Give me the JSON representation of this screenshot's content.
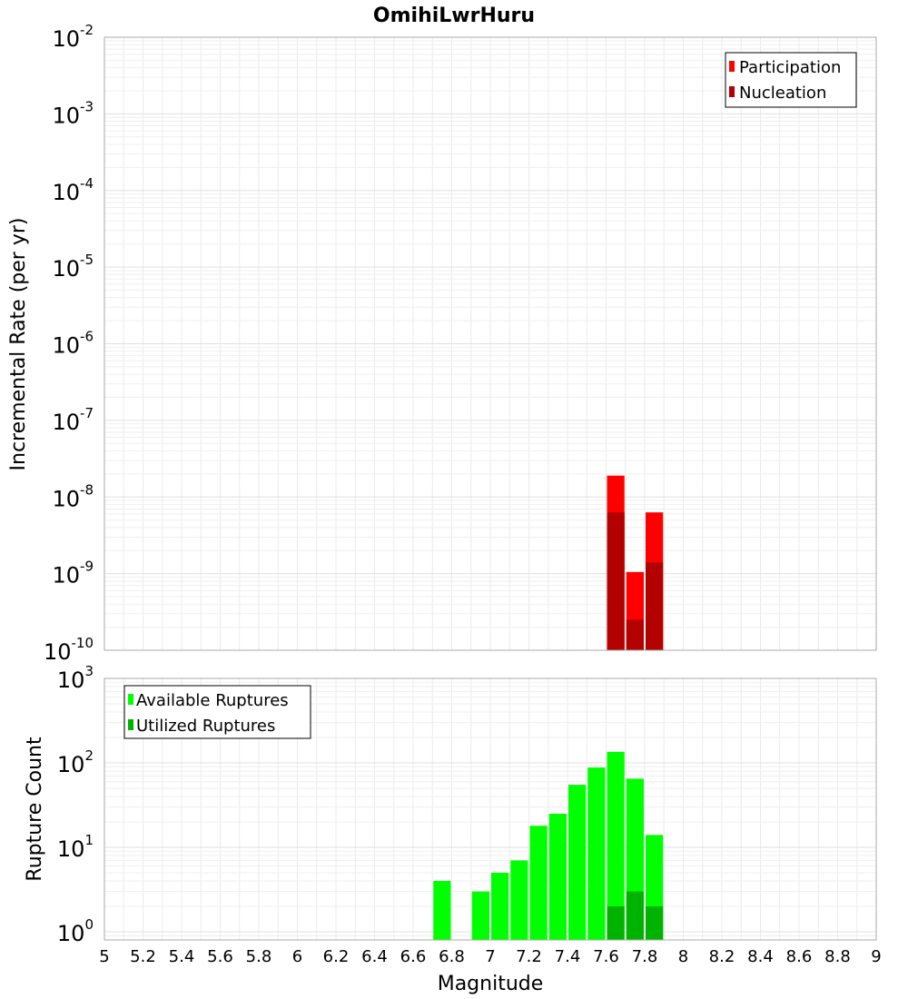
{
  "chart_data": [
    {
      "type": "bar",
      "title": "OmihiLwrHuru",
      "ylabel": "Incremental Rate (per yr)",
      "yscale": "log",
      "ylim": [
        1e-10,
        0.01
      ],
      "y_ticks": [
        {
          "exp": -10,
          "base": "10",
          "exp_label": "-10"
        },
        {
          "exp": -9,
          "base": "10",
          "exp_label": "-9"
        },
        {
          "exp": -8,
          "base": "10",
          "exp_label": "-8"
        },
        {
          "exp": -7,
          "base": "10",
          "exp_label": "-7"
        },
        {
          "exp": -6,
          "base": "10",
          "exp_label": "-6"
        },
        {
          "exp": -5,
          "base": "10",
          "exp_label": "-5"
        },
        {
          "exp": -4,
          "base": "10",
          "exp_label": "-4"
        },
        {
          "exp": -3,
          "base": "10",
          "exp_label": "-3"
        },
        {
          "exp": -2,
          "base": "10",
          "exp_label": "-2"
        }
      ],
      "bin_width": 0.1,
      "series": [
        {
          "name": "Participation",
          "color": "#ff0000",
          "points": [
            {
              "x": 7.65,
              "y": 1.9e-08
            },
            {
              "x": 7.75,
              "y": 1.05e-09
            },
            {
              "x": 7.85,
              "y": 6.3e-09
            }
          ]
        },
        {
          "name": "Nucleation",
          "color": "#b30000",
          "points": [
            {
              "x": 7.65,
              "y": 6.3e-09
            },
            {
              "x": 7.75,
              "y": 2.5e-10
            },
            {
              "x": 7.85,
              "y": 1.4e-09
            }
          ]
        }
      ],
      "legend_position": "top-right",
      "grid": true
    },
    {
      "type": "bar",
      "xlabel": "Magnitude",
      "ylabel": "Rupture Count",
      "yscale": "log",
      "ylim": [
        0.8,
        1000
      ],
      "xlim": [
        5,
        9
      ],
      "x_ticks": [
        "5",
        "5.2",
        "5.4",
        "5.6",
        "5.8",
        "6",
        "6.2",
        "6.4",
        "6.6",
        "6.8",
        "7",
        "7.2",
        "7.4",
        "7.6",
        "7.8",
        "8",
        "8.2",
        "8.4",
        "8.6",
        "8.8",
        "9"
      ],
      "y_ticks": [
        {
          "exp": 0,
          "base": "10",
          "exp_label": "0"
        },
        {
          "exp": 1,
          "base": "10",
          "exp_label": "1"
        },
        {
          "exp": 2,
          "base": "10",
          "exp_label": "2"
        },
        {
          "exp": 3,
          "base": "10",
          "exp_label": "3"
        }
      ],
      "bin_width": 0.1,
      "series": [
        {
          "name": "Available Ruptures",
          "color": "#00ff00",
          "points": [
            {
              "x": 6.75,
              "y": 4
            },
            {
              "x": 6.95,
              "y": 3
            },
            {
              "x": 7.05,
              "y": 5
            },
            {
              "x": 7.15,
              "y": 7
            },
            {
              "x": 7.25,
              "y": 18
            },
            {
              "x": 7.35,
              "y": 25
            },
            {
              "x": 7.45,
              "y": 55
            },
            {
              "x": 7.55,
              "y": 88
            },
            {
              "x": 7.65,
              "y": 135
            },
            {
              "x": 7.75,
              "y": 65
            },
            {
              "x": 7.85,
              "y": 14
            }
          ]
        },
        {
          "name": "Utilized Ruptures",
          "color": "#00b300",
          "points": [
            {
              "x": 7.65,
              "y": 2
            },
            {
              "x": 7.75,
              "y": 3
            },
            {
              "x": 7.85,
              "y": 2
            }
          ]
        }
      ],
      "legend_position": "top-left",
      "grid": true
    }
  ]
}
